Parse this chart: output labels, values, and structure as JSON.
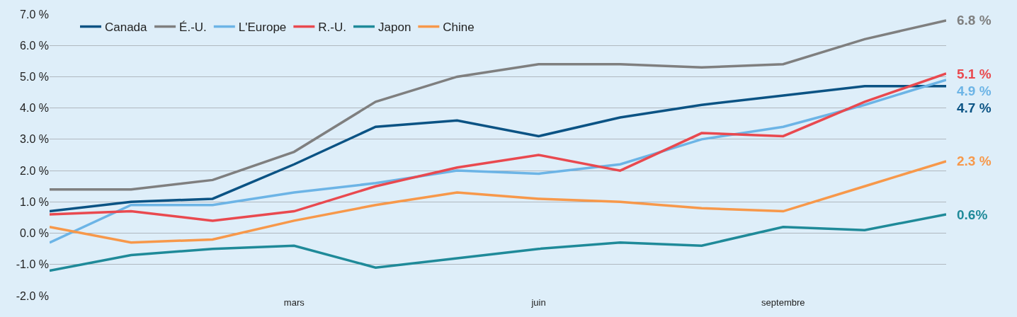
{
  "chart_data": {
    "type": "line",
    "categories": [
      null,
      null,
      null,
      "mars",
      null,
      null,
      "juin",
      null,
      null,
      "septembre",
      null,
      null
    ],
    "series": [
      {
        "name": "Canada",
        "color": "#0b5384",
        "values": [
          0.7,
          1.0,
          1.1,
          2.2,
          3.4,
          3.6,
          3.1,
          3.7,
          4.1,
          4.4,
          4.7,
          4.7
        ]
      },
      {
        "name": "É.-U.",
        "color": "#7f7f7f",
        "values": [
          1.4,
          1.4,
          1.7,
          2.6,
          4.2,
          5.0,
          5.4,
          5.4,
          5.3,
          5.4,
          6.2,
          6.8
        ]
      },
      {
        "name": "L'Europe",
        "color": "#6cb4e6",
        "values": [
          -0.3,
          0.9,
          0.9,
          1.3,
          1.6,
          2.0,
          1.9,
          2.2,
          3.0,
          3.4,
          4.1,
          4.9
        ]
      },
      {
        "name": "R.-U.",
        "color": "#e9494f",
        "values": [
          0.6,
          0.7,
          0.4,
          0.7,
          1.5,
          2.1,
          2.5,
          2.0,
          3.2,
          3.1,
          4.2,
          5.1
        ]
      },
      {
        "name": "Japon",
        "color": "#1f8a99",
        "values": [
          -1.2,
          -0.7,
          -0.5,
          -0.4,
          -1.1,
          -0.8,
          -0.5,
          -0.3,
          -0.4,
          0.2,
          0.1,
          0.6
        ]
      },
      {
        "name": "Chine",
        "color": "#f7984a",
        "values": [
          0.2,
          -0.3,
          -0.2,
          0.4,
          0.9,
          1.3,
          1.1,
          1.0,
          0.8,
          0.7,
          1.5,
          2.3
        ]
      }
    ],
    "annotations": [
      "4.7 %",
      "6.8 %",
      "4.9 %",
      "5.1 %",
      "0.6%",
      "2.3 %"
    ],
    "ylim": [
      -2.0,
      7.0
    ],
    "yticks": [
      {
        "value": -2,
        "label": "-2.0 %"
      },
      {
        "value": -1,
        "label": "-1.0 %"
      },
      {
        "value": 0,
        "label": "0.0 %"
      },
      {
        "value": 1,
        "label": "1.0 %"
      },
      {
        "value": 2,
        "label": "2.0 %"
      },
      {
        "value": 3,
        "label": "3.0 %"
      },
      {
        "value": 4,
        "label": "4.0 %"
      },
      {
        "value": 5,
        "label": "5.0 %"
      },
      {
        "value": 6,
        "label": "6.0 %"
      },
      {
        "value": 7,
        "label": "7.0 %"
      }
    ],
    "grid": "y",
    "legend": "top left",
    "marker": "none",
    "line_style": "solid"
  }
}
